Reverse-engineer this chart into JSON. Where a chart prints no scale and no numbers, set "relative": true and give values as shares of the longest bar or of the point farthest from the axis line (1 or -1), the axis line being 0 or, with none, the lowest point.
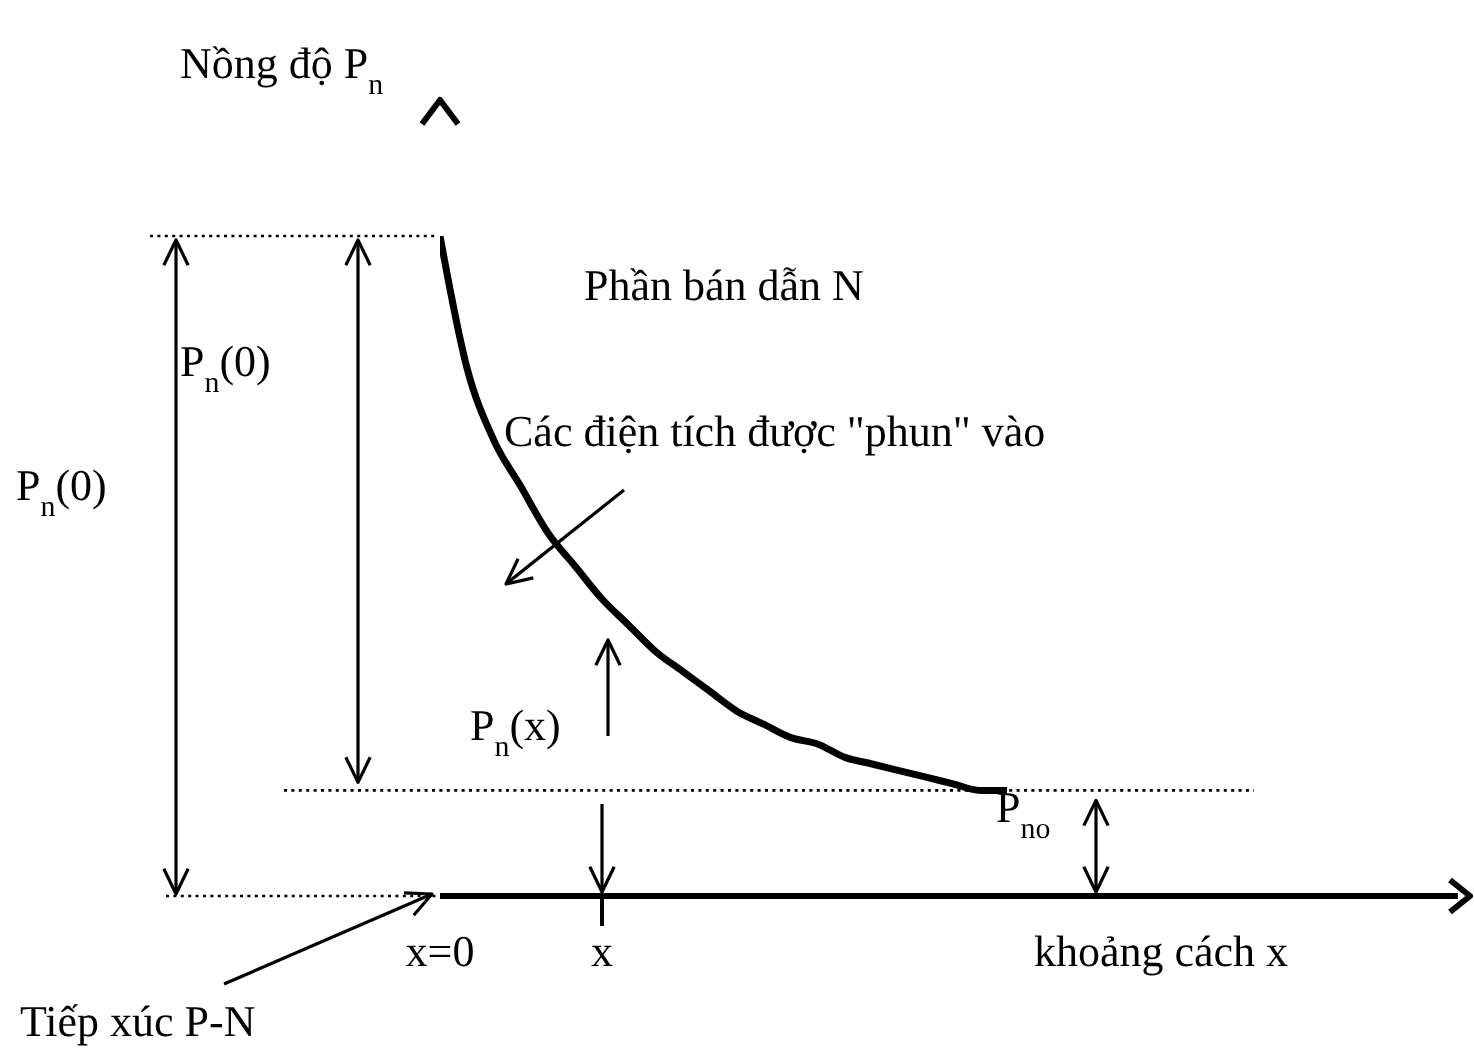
{
  "chart_data": {
    "type": "line",
    "relative": true,
    "ylabel": "Nồng độ P$_{n}$",
    "xlabel": "khoảng cách x",
    "categories": [
      "x=0",
      null,
      null,
      null,
      null,
      null,
      "x",
      null,
      null,
      null,
      null,
      null,
      null,
      null,
      null,
      null,
      null,
      null,
      null,
      null,
      null,
      null
    ],
    "series": [
      {
        "color": "#000000",
        "values": [
          1,
          0.8,
          0.69,
          0.62,
          0.55,
          0.5,
          0.45,
          0.41,
          0.37,
          0.34,
          0.31,
          0.28,
          0.26,
          0.24,
          0.23,
          0.21,
          0.2,
          0.19,
          0.18,
          0.17,
          0.16,
          0.16
        ]
      }
    ],
    "marker": "none",
    "ref_lines": [
      {
        "axis": "y",
        "value": 0.16,
        "label": "P$_{no}$",
        "line_style": "dotted"
      }
    ],
    "annotations": [
      "Phần bán dẫn N",
      "Các điện tích được \"phun\" vào",
      "P$_{n}$(0)",
      "P$_{n}$(0)",
      "P$_{n}$(x)",
      "Tiếp xúc P-N"
    ]
  }
}
